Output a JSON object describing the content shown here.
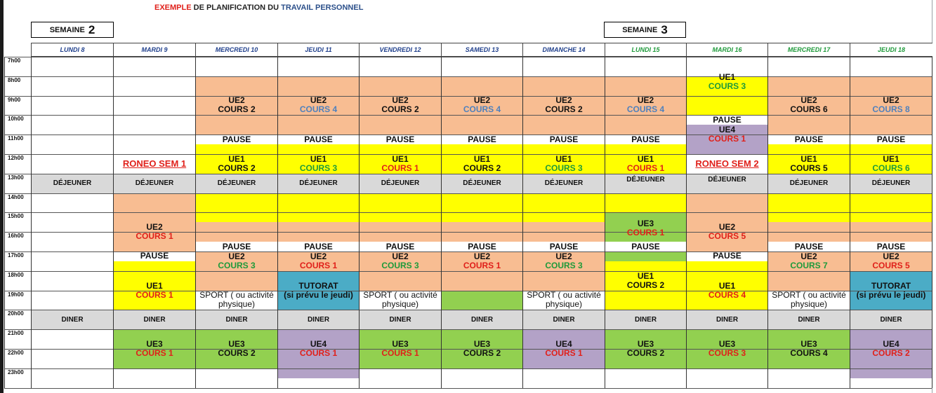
{
  "title": {
    "part1": "EXEMPLE",
    "part2": " DE PLANIFICATION DU ",
    "part3": "TRAVAIL PERSONNEL"
  },
  "weeks": [
    {
      "label": "SEMAINE",
      "number": "2"
    },
    {
      "label": "SEMAINE",
      "number": "3"
    }
  ],
  "days": [
    "LUNDI 8",
    "MARDI 9",
    "MERCREDI 10",
    "JEUDI 11",
    "VENDREDI 12",
    "SAMEDI 13",
    "DIMANCHE 14",
    "LUNDI 15",
    "MARDI 16",
    "MERCREDI 17",
    "JEUDI 18"
  ],
  "hours": [
    "7h00",
    "8h00",
    "9h00",
    "10h00",
    "11h00",
    "12h00",
    "13h00",
    "14h00",
    "15h00",
    "16h00",
    "17h00",
    "18h00",
    "19h00",
    "20h00",
    "21h00",
    "22h00",
    "23h00"
  ],
  "colors": {
    "salmon": "#f8bd92",
    "yellow": "#ffff00",
    "gray": "#d9d9d9",
    "green": "#92d050",
    "purple": "#b3a2c7",
    "teal": "#4bacc6",
    "red": "#e0201a",
    "blue": "#4f81bd",
    "darkgreen": "#1e9a3a",
    "black": "#111111",
    "header_w2": "#1f3f8c",
    "header_w3": "#1e9a3a"
  },
  "blocks": [
    {
      "day": 0,
      "from": 13,
      "to": 14,
      "color": "gray",
      "lines": [
        "DÉJEUNER"
      ],
      "type": "small"
    },
    {
      "day": 0,
      "from": 20,
      "to": 21,
      "color": "gray",
      "lines": [
        "DINER"
      ],
      "type": "small"
    },
    {
      "day": 1,
      "from": 12,
      "to": 13,
      "lines": [
        "RONEO SEM 1"
      ],
      "type": "roneo"
    },
    {
      "day": 1,
      "from": 13,
      "to": 14,
      "color": "gray",
      "lines": [
        "DÉJEUNER"
      ],
      "type": "small"
    },
    {
      "day": 1,
      "from": 14,
      "to": 17,
      "color": "salmon",
      "lines": [
        "UE2",
        "COURS 1"
      ],
      "cc": "red",
      "ty": 15.5
    },
    {
      "day": 1,
      "from": 17,
      "to": 17.5,
      "lines": [
        "PAUSE"
      ],
      "type": "pause"
    },
    {
      "day": 1,
      "from": 17.5,
      "to": 20,
      "color": "yellow",
      "lines": [
        "UE1",
        "COURS 1"
      ],
      "cc": "red",
      "ty": 18.5
    },
    {
      "day": 1,
      "from": 20,
      "to": 21,
      "color": "gray",
      "lines": [
        "DINER"
      ],
      "type": "small"
    },
    {
      "day": 1,
      "from": 21,
      "to": 23,
      "color": "green",
      "lines": [
        "UE3",
        "COURS 1"
      ],
      "cc": "red"
    },
    {
      "day": 2,
      "from": 8,
      "to": 11,
      "color": "salmon",
      "lines": [
        "UE2",
        "COURS 2"
      ],
      "cc": "black",
      "ty": 9
    },
    {
      "day": 2,
      "from": 11,
      "to": 11.5,
      "lines": [
        "PAUSE"
      ],
      "type": "pause"
    },
    {
      "day": 2,
      "from": 11.5,
      "to": 13,
      "color": "yellow",
      "lines": [
        "UE1",
        "COURS 2"
      ],
      "cc": "black",
      "ty": 12
    },
    {
      "day": 2,
      "from": 13,
      "to": 14,
      "color": "gray",
      "lines": [
        "DÉJEUNER"
      ],
      "type": "small"
    },
    {
      "day": 2,
      "from": 14,
      "to": 15.5,
      "color": "yellow"
    },
    {
      "day": 2,
      "from": 15.5,
      "to": 16.5,
      "color": "salmon"
    },
    {
      "day": 2,
      "from": 16.5,
      "to": 17,
      "lines": [
        "PAUSE"
      ],
      "type": "pause"
    },
    {
      "day": 2,
      "from": 17,
      "to": 19,
      "color": "salmon",
      "lines": [
        "UE2",
        "COURS 3"
      ],
      "cc": "darkgreen",
      "ty": 17
    },
    {
      "day": 2,
      "from": 19,
      "to": 20,
      "lines": [
        "SPORT ( ou activité",
        "physique)"
      ],
      "type": "sport"
    },
    {
      "day": 2,
      "from": 20,
      "to": 21,
      "color": "gray",
      "lines": [
        "DINER"
      ],
      "type": "small"
    },
    {
      "day": 2,
      "from": 21,
      "to": 23,
      "color": "green",
      "lines": [
        "UE3",
        "COURS 2"
      ],
      "cc": "black"
    },
    {
      "day": 3,
      "from": 8,
      "to": 11,
      "color": "salmon",
      "lines": [
        "UE2",
        "COURS 4"
      ],
      "cc": "blue",
      "ty": 9
    },
    {
      "day": 3,
      "from": 11,
      "to": 11.5,
      "lines": [
        "PAUSE"
      ],
      "type": "pause"
    },
    {
      "day": 3,
      "from": 11.5,
      "to": 13,
      "color": "yellow",
      "lines": [
        "UE1",
        "COURS 3"
      ],
      "cc": "darkgreen",
      "ty": 12
    },
    {
      "day": 3,
      "from": 13,
      "to": 14,
      "color": "gray",
      "lines": [
        "DÉJEUNER"
      ],
      "type": "small"
    },
    {
      "day": 3,
      "from": 14,
      "to": 15.5,
      "color": "yellow"
    },
    {
      "day": 3,
      "from": 15.5,
      "to": 16.5,
      "color": "salmon"
    },
    {
      "day": 3,
      "from": 16.5,
      "to": 17,
      "lines": [
        "PAUSE"
      ],
      "type": "pause"
    },
    {
      "day": 3,
      "from": 17,
      "to": 18,
      "color": "salmon",
      "lines": [
        "UE2",
        "COURS 1"
      ],
      "cc": "red",
      "ty": 17
    },
    {
      "day": 3,
      "from": 18,
      "to": 20,
      "color": "teal",
      "lines": [
        "TUTORAT",
        "(si prévu le jeudi)"
      ],
      "type": "tutorat"
    },
    {
      "day": 3,
      "from": 20,
      "to": 21,
      "color": "gray",
      "lines": [
        "DINER"
      ],
      "type": "small"
    },
    {
      "day": 3,
      "from": 21,
      "to": 23.5,
      "color": "purple",
      "lines": [
        "UE4",
        "COURS 1"
      ],
      "cc": "red",
      "ty": 21.5
    },
    {
      "day": 4,
      "from": 8,
      "to": 11,
      "color": "salmon",
      "lines": [
        "UE2",
        "COURS 2"
      ],
      "cc": "black",
      "ty": 9
    },
    {
      "day": 4,
      "from": 11,
      "to": 11.5,
      "lines": [
        "PAUSE"
      ],
      "type": "pause"
    },
    {
      "day": 4,
      "from": 11.5,
      "to": 13,
      "color": "yellow",
      "lines": [
        "UE1",
        "COURS 1"
      ],
      "cc": "red",
      "ty": 12
    },
    {
      "day": 4,
      "from": 13,
      "to": 14,
      "color": "gray",
      "lines": [
        "DÉJEUNER"
      ],
      "type": "small"
    },
    {
      "day": 4,
      "from": 14,
      "to": 15.5,
      "color": "yellow"
    },
    {
      "day": 4,
      "from": 15.5,
      "to": 16.5,
      "color": "salmon"
    },
    {
      "day": 4,
      "from": 16.5,
      "to": 17,
      "lines": [
        "PAUSE"
      ],
      "type": "pause"
    },
    {
      "day": 4,
      "from": 17,
      "to": 19,
      "color": "salmon",
      "lines": [
        "UE2",
        "COURS 3"
      ],
      "cc": "darkgreen",
      "ty": 17
    },
    {
      "day": 4,
      "from": 19,
      "to": 20,
      "lines": [
        "SPORT ( ou activité",
        "physique)"
      ],
      "type": "sport"
    },
    {
      "day": 4,
      "from": 20,
      "to": 21,
      "color": "gray",
      "lines": [
        "DINER"
      ],
      "type": "small"
    },
    {
      "day": 4,
      "from": 21,
      "to": 23,
      "color": "green",
      "lines": [
        "UE3",
        "COURS 1"
      ],
      "cc": "red"
    },
    {
      "day": 5,
      "from": 8,
      "to": 11,
      "color": "salmon",
      "lines": [
        "UE2",
        "COURS 4"
      ],
      "cc": "blue",
      "ty": 9
    },
    {
      "day": 5,
      "from": 11,
      "to": 11.5,
      "lines": [
        "PAUSE"
      ],
      "type": "pause"
    },
    {
      "day": 5,
      "from": 11.5,
      "to": 13,
      "color": "yellow",
      "lines": [
        "UE1",
        "COURS 2"
      ],
      "cc": "black",
      "ty": 12
    },
    {
      "day": 5,
      "from": 13,
      "to": 14,
      "color": "gray",
      "lines": [
        "DÉJEUNER"
      ],
      "type": "small"
    },
    {
      "day": 5,
      "from": 14,
      "to": 15.5,
      "color": "yellow"
    },
    {
      "day": 5,
      "from": 15.5,
      "to": 16.5,
      "color": "salmon"
    },
    {
      "day": 5,
      "from": 16.5,
      "to": 17,
      "lines": [
        "PAUSE"
      ],
      "type": "pause"
    },
    {
      "day": 5,
      "from": 17,
      "to": 19,
      "color": "salmon",
      "lines": [
        "UE2",
        "COURS 1"
      ],
      "cc": "red",
      "ty": 17
    },
    {
      "day": 5,
      "from": 19,
      "to": 20,
      "color": "green"
    },
    {
      "day": 5,
      "from": 20,
      "to": 21,
      "color": "gray",
      "lines": [
        "DINER"
      ],
      "type": "small"
    },
    {
      "day": 5,
      "from": 21,
      "to": 23,
      "color": "green",
      "lines": [
        "UE3",
        "COURS 2"
      ],
      "cc": "black"
    },
    {
      "day": 6,
      "from": 8,
      "to": 11,
      "color": "salmon",
      "lines": [
        "UE2",
        "COURS 2"
      ],
      "cc": "black",
      "ty": 9
    },
    {
      "day": 6,
      "from": 11,
      "to": 11.5,
      "lines": [
        "PAUSE"
      ],
      "type": "pause"
    },
    {
      "day": 6,
      "from": 11.5,
      "to": 13,
      "color": "yellow",
      "lines": [
        "UE1",
        "COURS 3"
      ],
      "cc": "darkgreen",
      "ty": 12
    },
    {
      "day": 6,
      "from": 13,
      "to": 14,
      "color": "gray",
      "lines": [
        "DÉJEUNER"
      ],
      "type": "small"
    },
    {
      "day": 6,
      "from": 14,
      "to": 15.5,
      "color": "yellow"
    },
    {
      "day": 6,
      "from": 15.5,
      "to": 16.5,
      "color": "salmon"
    },
    {
      "day": 6,
      "from": 16.5,
      "to": 17,
      "lines": [
        "PAUSE"
      ],
      "type": "pause"
    },
    {
      "day": 6,
      "from": 17,
      "to": 19,
      "color": "salmon",
      "lines": [
        "UE2",
        "COURS 3"
      ],
      "cc": "darkgreen",
      "ty": 17
    },
    {
      "day": 6,
      "from": 19,
      "to": 20,
      "lines": [
        "SPORT ( ou activité",
        "physique)"
      ],
      "type": "sport"
    },
    {
      "day": 6,
      "from": 20,
      "to": 21,
      "color": "gray",
      "lines": [
        "DINER"
      ],
      "type": "small"
    },
    {
      "day": 6,
      "from": 21,
      "to": 23,
      "color": "purple",
      "lines": [
        "UE4",
        "COURS 1"
      ],
      "cc": "red"
    },
    {
      "day": 7,
      "from": 8,
      "to": 11,
      "color": "salmon",
      "lines": [
        "UE2",
        "COURS 4"
      ],
      "cc": "blue",
      "ty": 9
    },
    {
      "day": 7,
      "from": 11,
      "to": 11.5,
      "lines": [
        "PAUSE"
      ],
      "type": "pause"
    },
    {
      "day": 7,
      "from": 11.5,
      "to": 13,
      "color": "yellow",
      "lines": [
        "UE1",
        "COURS 1"
      ],
      "cc": "red",
      "ty": 12
    },
    {
      "day": 7,
      "from": 13,
      "to": 14,
      "color": "gray",
      "lines": [
        "DÉJEUNER"
      ],
      "type": "small",
      "ty": 13,
      "th": 0.6
    },
    {
      "day": 7,
      "from": 14,
      "to": 15,
      "color": "yellow"
    },
    {
      "day": 7,
      "from": 15,
      "to": 16.5,
      "color": "green",
      "lines": [
        "UE3",
        "COURS 1"
      ],
      "cc": "red",
      "ty": 15.2,
      "th": 1.2
    },
    {
      "day": 7,
      "from": 16.5,
      "to": 17,
      "lines": [
        "PAUSE"
      ],
      "type": "pause"
    },
    {
      "day": 7,
      "from": 17,
      "to": 17.5,
      "color": "green"
    },
    {
      "day": 7,
      "from": 17.5,
      "to": 20,
      "color": "yellow",
      "lines": [
        "UE1",
        "COURS 2"
      ],
      "cc": "black",
      "ty": 18
    },
    {
      "day": 7,
      "from": 20,
      "to": 21,
      "color": "gray",
      "lines": [
        "DINER"
      ],
      "type": "small"
    },
    {
      "day": 7,
      "from": 21,
      "to": 23,
      "color": "green",
      "lines": [
        "UE3",
        "COURS 2"
      ],
      "cc": "black"
    },
    {
      "day": 8,
      "from": 8,
      "to": 10,
      "color": "yellow",
      "lines": [
        "UE1",
        "COURS 3"
      ],
      "cc": "darkgreen",
      "ty": 8,
      "th": 0.6
    },
    {
      "day": 8,
      "from": 10,
      "to": 10.5,
      "lines": [
        "PAUSE"
      ],
      "type": "pause"
    },
    {
      "day": 8,
      "from": 10.5,
      "to": 12,
      "color": "purple",
      "lines": [
        "UE4",
        "COURS 1"
      ],
      "cc": "red",
      "ty": 10.5
    },
    {
      "day": 8,
      "from": 12,
      "to": 13,
      "lines": [
        "RONEO SEM 2"
      ],
      "type": "roneo"
    },
    {
      "day": 8,
      "from": 13,
      "to": 14,
      "color": "gray",
      "lines": [
        "DÉJEUNER"
      ],
      "type": "small",
      "ty": 13,
      "th": 0.6
    },
    {
      "day": 8,
      "from": 14,
      "to": 17,
      "color": "salmon",
      "lines": [
        "UE2",
        "COURS 5"
      ],
      "cc": "red",
      "ty": 15.5
    },
    {
      "day": 8,
      "from": 17,
      "to": 17.5,
      "lines": [
        "PAUSE"
      ],
      "type": "pause"
    },
    {
      "day": 8,
      "from": 17.5,
      "to": 20,
      "color": "yellow",
      "lines": [
        "UE1",
        "COURS 4"
      ],
      "cc": "red",
      "ty": 18.5
    },
    {
      "day": 8,
      "from": 20,
      "to": 21,
      "color": "gray",
      "lines": [
        "DINER"
      ],
      "type": "small"
    },
    {
      "day": 8,
      "from": 21,
      "to": 23,
      "color": "green",
      "lines": [
        "UE3",
        "COURS 3"
      ],
      "cc": "red"
    },
    {
      "day": 9,
      "from": 8,
      "to": 11,
      "color": "salmon",
      "lines": [
        "UE2",
        "COURS 6"
      ],
      "cc": "black",
      "ty": 9
    },
    {
      "day": 9,
      "from": 11,
      "to": 11.5,
      "lines": [
        "PAUSE"
      ],
      "type": "pause"
    },
    {
      "day": 9,
      "from": 11.5,
      "to": 13,
      "color": "yellow",
      "lines": [
        "UE1",
        "COURS 5"
      ],
      "cc": "black",
      "ty": 12
    },
    {
      "day": 9,
      "from": 13,
      "to": 14,
      "color": "gray",
      "lines": [
        "DÉJEUNER"
      ],
      "type": "small"
    },
    {
      "day": 9,
      "from": 14,
      "to": 15.5,
      "color": "yellow"
    },
    {
      "day": 9,
      "from": 15.5,
      "to": 16.5,
      "color": "salmon"
    },
    {
      "day": 9,
      "from": 16.5,
      "to": 17,
      "lines": [
        "PAUSE"
      ],
      "type": "pause"
    },
    {
      "day": 9,
      "from": 17,
      "to": 19,
      "color": "salmon",
      "lines": [
        "UE2",
        "COURS 7"
      ],
      "cc": "darkgreen",
      "ty": 17
    },
    {
      "day": 9,
      "from": 19,
      "to": 20,
      "lines": [
        "SPORT ( ou activité",
        "physique)"
      ],
      "type": "sport"
    },
    {
      "day": 9,
      "from": 20,
      "to": 21,
      "color": "gray",
      "lines": [
        "DINER"
      ],
      "type": "small"
    },
    {
      "day": 9,
      "from": 21,
      "to": 23,
      "color": "green",
      "lines": [
        "UE3",
        "COURS 4"
      ],
      "cc": "black"
    },
    {
      "day": 10,
      "from": 8,
      "to": 11,
      "color": "salmon",
      "lines": [
        "UE2",
        "COURS 8"
      ],
      "cc": "blue",
      "ty": 9
    },
    {
      "day": 10,
      "from": 11,
      "to": 11.5,
      "lines": [
        "PAUSE"
      ],
      "type": "pause"
    },
    {
      "day": 10,
      "from": 11.5,
      "to": 13,
      "color": "yellow",
      "lines": [
        "UE1",
        "COURS 6"
      ],
      "cc": "darkgreen",
      "ty": 12
    },
    {
      "day": 10,
      "from": 13,
      "to": 14,
      "color": "gray",
      "lines": [
        "DÉJEUNER"
      ],
      "type": "small"
    },
    {
      "day": 10,
      "from": 14,
      "to": 15.5,
      "color": "yellow"
    },
    {
      "day": 10,
      "from": 15.5,
      "to": 16.5,
      "color": "salmon"
    },
    {
      "day": 10,
      "from": 16.5,
      "to": 17,
      "lines": [
        "PAUSE"
      ],
      "type": "pause"
    },
    {
      "day": 10,
      "from": 17,
      "to": 18,
      "color": "salmon",
      "lines": [
        "UE2",
        "COURS 5"
      ],
      "cc": "red",
      "ty": 17
    },
    {
      "day": 10,
      "from": 18,
      "to": 20,
      "color": "teal",
      "lines": [
        "TUTORAT",
        "(si prévu le jeudi)"
      ],
      "type": "tutorat"
    },
    {
      "day": 10,
      "from": 20,
      "to": 21,
      "color": "gray",
      "lines": [
        "DINER"
      ],
      "type": "small"
    },
    {
      "day": 10,
      "from": 21,
      "to": 23.5,
      "color": "purple",
      "lines": [
        "UE4",
        "COURS 2"
      ],
      "cc": "red",
      "ty": 21.5
    }
  ]
}
